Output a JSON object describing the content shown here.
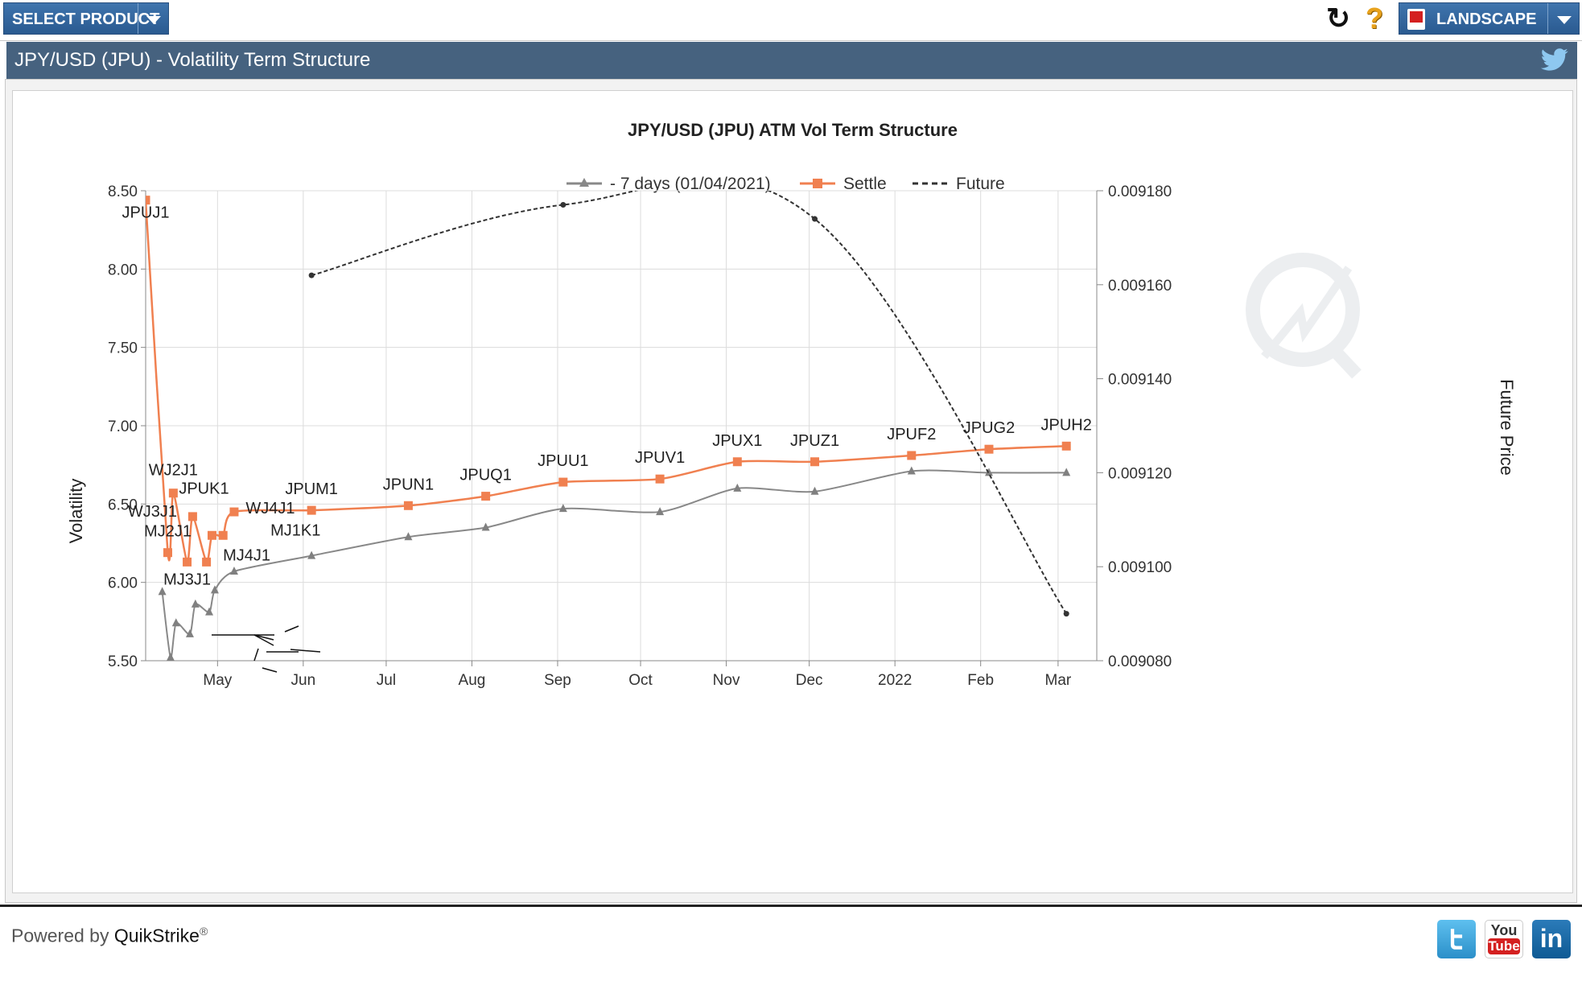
{
  "toolbar": {
    "select_product_label": "SELECT PRODUCT",
    "landscape_label": "LANDSCAPE",
    "help_glyph": "?",
    "refresh_glyph": "↻"
  },
  "page_title": "JPY/USD (JPU) - Volatility Term Structure",
  "footer": {
    "powered_by": "Powered by ",
    "brand": "QuikStrike",
    "reg": "®",
    "youtube_top": "You",
    "youtube_bottom": "Tube",
    "linkedin": "in"
  },
  "icons": {
    "twitter_header": "twitter-icon",
    "refresh": "refresh-icon",
    "help": "help-icon",
    "pdf": "pdf-icon"
  },
  "colors": {
    "settle": "#f08050",
    "prior": "#888888",
    "future": "#333333",
    "header_bg": "#46627f",
    "button_bg": "#2f62a0"
  },
  "chart_data": {
    "type": "line",
    "title": "JPY/USD (JPU) ATM Vol Term Structure",
    "ylabel": "Volatility",
    "y2label": "Future Price",
    "ylim": [
      5.5,
      8.5
    ],
    "y2lim": [
      0.00908,
      0.00918
    ],
    "yticks": [
      "8.50",
      "8.00",
      "7.50",
      "7.00",
      "6.50",
      "6.00",
      "5.50"
    ],
    "y2ticks": [
      "0.009180",
      "0.009160",
      "0.009140",
      "0.009120",
      "0.009100",
      "0.009080"
    ],
    "x_range": [
      "2021-04-05",
      "2022-03-15"
    ],
    "xticks": [
      {
        "date": "2021-05-01",
        "label": "May"
      },
      {
        "date": "2021-06-01",
        "label": "Jun"
      },
      {
        "date": "2021-07-01",
        "label": "Jul"
      },
      {
        "date": "2021-08-01",
        "label": "Aug"
      },
      {
        "date": "2021-09-01",
        "label": "Sep"
      },
      {
        "date": "2021-10-01",
        "label": "Oct"
      },
      {
        "date": "2021-11-01",
        "label": "Nov"
      },
      {
        "date": "2021-12-01",
        "label": "Dec"
      },
      {
        "date": "2022-01-01",
        "label": "2022"
      },
      {
        "date": "2022-02-01",
        "label": "Feb"
      },
      {
        "date": "2022-03-01",
        "label": "Mar"
      }
    ],
    "grid": true,
    "legend_position": "top-center",
    "series": [
      {
        "name": "- 7 days (01/04/2021)",
        "style": "line-triangle",
        "color": "#888888",
        "axis": "left",
        "points": [
          {
            "x": "2021-04-11",
            "y": 5.94
          },
          {
            "x": "2021-04-14",
            "y": 5.52
          },
          {
            "x": "2021-04-16",
            "y": 5.74
          },
          {
            "x": "2021-04-21",
            "y": 5.67
          },
          {
            "x": "2021-04-23",
            "y": 5.86
          },
          {
            "x": "2021-04-28",
            "y": 5.81
          },
          {
            "x": "2021-04-30",
            "y": 5.95
          },
          {
            "x": "2021-05-07",
            "y": 6.07
          },
          {
            "x": "2021-06-04",
            "y": 6.17
          },
          {
            "x": "2021-07-09",
            "y": 6.29
          },
          {
            "x": "2021-08-06",
            "y": 6.35
          },
          {
            "x": "2021-09-03",
            "y": 6.47
          },
          {
            "x": "2021-10-08",
            "y": 6.45
          },
          {
            "x": "2021-11-05",
            "y": 6.6
          },
          {
            "x": "2021-12-03",
            "y": 6.58
          },
          {
            "x": "2022-01-07",
            "y": 6.71
          },
          {
            "x": "2022-02-04",
            "y": 6.7
          },
          {
            "x": "2022-03-04",
            "y": 6.7
          }
        ]
      },
      {
        "name": "Settle",
        "style": "line-square",
        "color": "#f08050",
        "axis": "left",
        "points": [
          {
            "x": "2021-04-05",
            "y": 8.44,
            "label": "JPUJ1"
          },
          {
            "x": "2021-04-13",
            "y": 6.19,
            "label": "MJ2J1"
          },
          {
            "x": "2021-04-15",
            "y": 6.57,
            "label": "WJ2J1"
          },
          {
            "x": "2021-04-20",
            "y": 6.13,
            "label": "MJ3J1"
          },
          {
            "x": "2021-04-22",
            "y": 6.42,
            "label": "WJ3J1"
          },
          {
            "x": "2021-04-27",
            "y": 6.13,
            "label": "MJ4J1"
          },
          {
            "x": "2021-04-29",
            "y": 6.3,
            "label": "JPUK1"
          },
          {
            "x": "2021-05-03",
            "y": 6.3,
            "label": "MJ1K1"
          },
          {
            "x": "2021-05-07",
            "y": 6.45,
            "label": "WJ4J1"
          },
          {
            "x": "2021-06-04",
            "y": 6.46,
            "label": "JPUM1"
          },
          {
            "x": "2021-07-09",
            "y": 6.49,
            "label": "JPUN1"
          },
          {
            "x": "2021-08-06",
            "y": 6.55,
            "label": "JPUQ1"
          },
          {
            "x": "2021-09-03",
            "y": 6.64,
            "label": "JPUU1"
          },
          {
            "x": "2021-10-08",
            "y": 6.66,
            "label": "JPUV1"
          },
          {
            "x": "2021-11-05",
            "y": 6.77,
            "label": "JPUX1"
          },
          {
            "x": "2021-12-03",
            "y": 6.77,
            "label": "JPUZ1"
          },
          {
            "x": "2022-01-07",
            "y": 6.81,
            "label": "JPUF2"
          },
          {
            "x": "2022-02-04",
            "y": 6.85,
            "label": "JPUG2"
          },
          {
            "x": "2022-03-04",
            "y": 6.87,
            "label": "JPUH2"
          }
        ]
      },
      {
        "name": "Future",
        "style": "dashed-dot",
        "color": "#333333",
        "axis": "right",
        "points": [
          {
            "x": "2021-06-04",
            "y": 0.009162
          },
          {
            "x": "2021-09-03",
            "y": 0.009177
          },
          {
            "x": "2021-12-03",
            "y": 0.009174
          },
          {
            "x": "2022-03-04",
            "y": 0.00909
          }
        ]
      }
    ]
  }
}
